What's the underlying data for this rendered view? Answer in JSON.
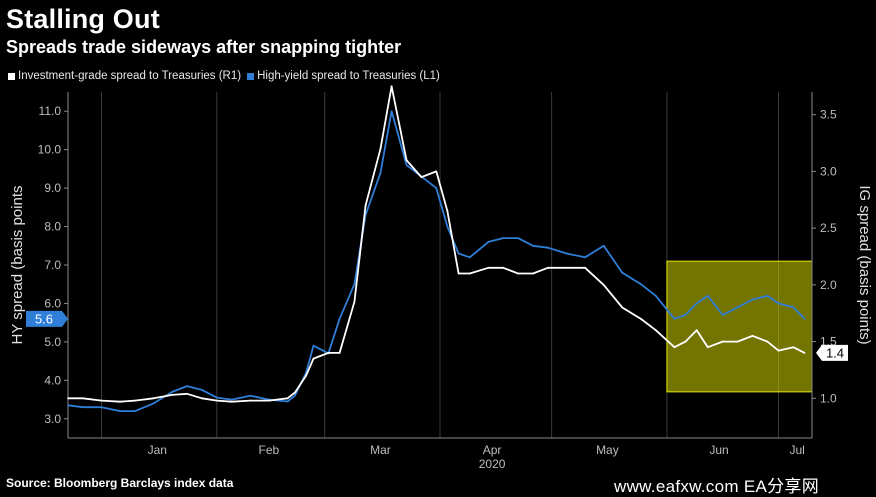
{
  "header": {
    "title": "Stalling Out",
    "subtitle": "Spreads trade sideways after snapping tighter"
  },
  "footer": {
    "source": "Source: Bloomberg Barclays index data",
    "watermark": "www.eafxw.com   EA分享网"
  },
  "colors": {
    "background": "#000000",
    "hy_series": "#2f7ed8",
    "ig_series": "#ffffff",
    "highlight_fill": "#d4d400",
    "hy_callout": "#2f7ed8",
    "ig_callout": "#ffffff"
  },
  "chart_data": {
    "type": "line",
    "legend": [
      {
        "name": "Investment-grade spread to Treasuries (R1)",
        "color": "#ffffff"
      },
      {
        "name": "High-yield spread to Treasuries (L1)",
        "color": "#2f7ed8"
      }
    ],
    "legend_position": "top-left",
    "grid": "vertical",
    "x_axis": {
      "months": [
        "Jan",
        "Feb",
        "Mar",
        "Apr",
        "May",
        "Jun",
        "Jul"
      ],
      "year_label": "2020",
      "range": [
        "2019-12-23",
        "2020-07-10"
      ]
    },
    "y_left": {
      "label": "HY spread (basis points",
      "range": [
        2.5,
        11.5
      ],
      "ticks": [
        "3.0",
        "4.0",
        "5.0",
        "6.0",
        "7.0",
        "8.0",
        "9.0",
        "10.0",
        "11.0"
      ]
    },
    "y_right": {
      "label": "IG spread (basis points)",
      "range": [
        0.65,
        3.7
      ],
      "ticks": [
        "1.0",
        "1.5",
        "2.0",
        "2.5",
        "3.0",
        "3.5"
      ]
    },
    "highlight_region": {
      "x_start": "2020-06-01",
      "x_end": "2020-07-10",
      "y_low": 3.7,
      "y_high": 7.1
    },
    "callouts": {
      "hy_last": "5.6",
      "ig_last": "1.4"
    },
    "series": [
      {
        "name": "High-yield spread to Treasuries (L1)",
        "axis": "left",
        "x": [
          "2019-12-23",
          "2019-12-27",
          "2020-01-01",
          "2020-01-06",
          "2020-01-10",
          "2020-01-15",
          "2020-01-20",
          "2020-01-24",
          "2020-01-28",
          "2020-02-01",
          "2020-02-05",
          "2020-02-10",
          "2020-02-15",
          "2020-02-20",
          "2020-02-22",
          "2020-02-25",
          "2020-02-27",
          "2020-03-02",
          "2020-03-05",
          "2020-03-09",
          "2020-03-12",
          "2020-03-16",
          "2020-03-19",
          "2020-03-23",
          "2020-03-27",
          "2020-03-31",
          "2020-04-03",
          "2020-04-06",
          "2020-04-09",
          "2020-04-14",
          "2020-04-18",
          "2020-04-22",
          "2020-04-26",
          "2020-04-30",
          "2020-05-05",
          "2020-05-10",
          "2020-05-15",
          "2020-05-20",
          "2020-05-25",
          "2020-05-29",
          "2020-06-03",
          "2020-06-06",
          "2020-06-09",
          "2020-06-12",
          "2020-06-16",
          "2020-06-20",
          "2020-06-24",
          "2020-06-28",
          "2020-07-01",
          "2020-07-05",
          "2020-07-08"
        ],
        "values": [
          3.35,
          3.3,
          3.3,
          3.2,
          3.2,
          3.4,
          3.7,
          3.85,
          3.75,
          3.55,
          3.5,
          3.6,
          3.5,
          3.45,
          3.6,
          4.2,
          4.9,
          4.7,
          5.6,
          6.5,
          8.3,
          9.4,
          11.0,
          9.6,
          9.3,
          9.0,
          8.0,
          7.3,
          7.2,
          7.6,
          7.7,
          7.7,
          7.5,
          7.45,
          7.3,
          7.2,
          7.5,
          6.8,
          6.5,
          6.2,
          5.6,
          5.7,
          6.0,
          6.2,
          5.7,
          5.9,
          6.1,
          6.2,
          6.0,
          5.9,
          5.6
        ]
      },
      {
        "name": "Investment-grade spread to Treasuries (R1)",
        "axis": "right",
        "x": [
          "2019-12-23",
          "2019-12-27",
          "2020-01-01",
          "2020-01-06",
          "2020-01-10",
          "2020-01-15",
          "2020-01-20",
          "2020-01-24",
          "2020-01-28",
          "2020-02-01",
          "2020-02-05",
          "2020-02-10",
          "2020-02-15",
          "2020-02-20",
          "2020-02-22",
          "2020-02-25",
          "2020-02-27",
          "2020-03-02",
          "2020-03-05",
          "2020-03-09",
          "2020-03-12",
          "2020-03-16",
          "2020-03-19",
          "2020-03-23",
          "2020-03-27",
          "2020-03-31",
          "2020-04-03",
          "2020-04-06",
          "2020-04-09",
          "2020-04-14",
          "2020-04-18",
          "2020-04-22",
          "2020-04-26",
          "2020-04-30",
          "2020-05-05",
          "2020-05-10",
          "2020-05-15",
          "2020-05-20",
          "2020-05-25",
          "2020-05-29",
          "2020-06-03",
          "2020-06-06",
          "2020-06-09",
          "2020-06-12",
          "2020-06-16",
          "2020-06-20",
          "2020-06-24",
          "2020-06-28",
          "2020-07-01",
          "2020-07-05",
          "2020-07-08"
        ],
        "values": [
          1.0,
          1.0,
          0.98,
          0.97,
          0.98,
          1.0,
          1.03,
          1.04,
          1.0,
          0.98,
          0.97,
          0.98,
          0.98,
          1.0,
          1.05,
          1.2,
          1.35,
          1.4,
          1.4,
          1.85,
          2.7,
          3.2,
          3.75,
          3.1,
          2.95,
          3.0,
          2.65,
          2.1,
          2.1,
          2.15,
          2.15,
          2.1,
          2.1,
          2.15,
          2.15,
          2.15,
          2.0,
          1.8,
          1.7,
          1.6,
          1.45,
          1.5,
          1.6,
          1.45,
          1.5,
          1.5,
          1.55,
          1.5,
          1.42,
          1.45,
          1.4
        ]
      }
    ]
  }
}
